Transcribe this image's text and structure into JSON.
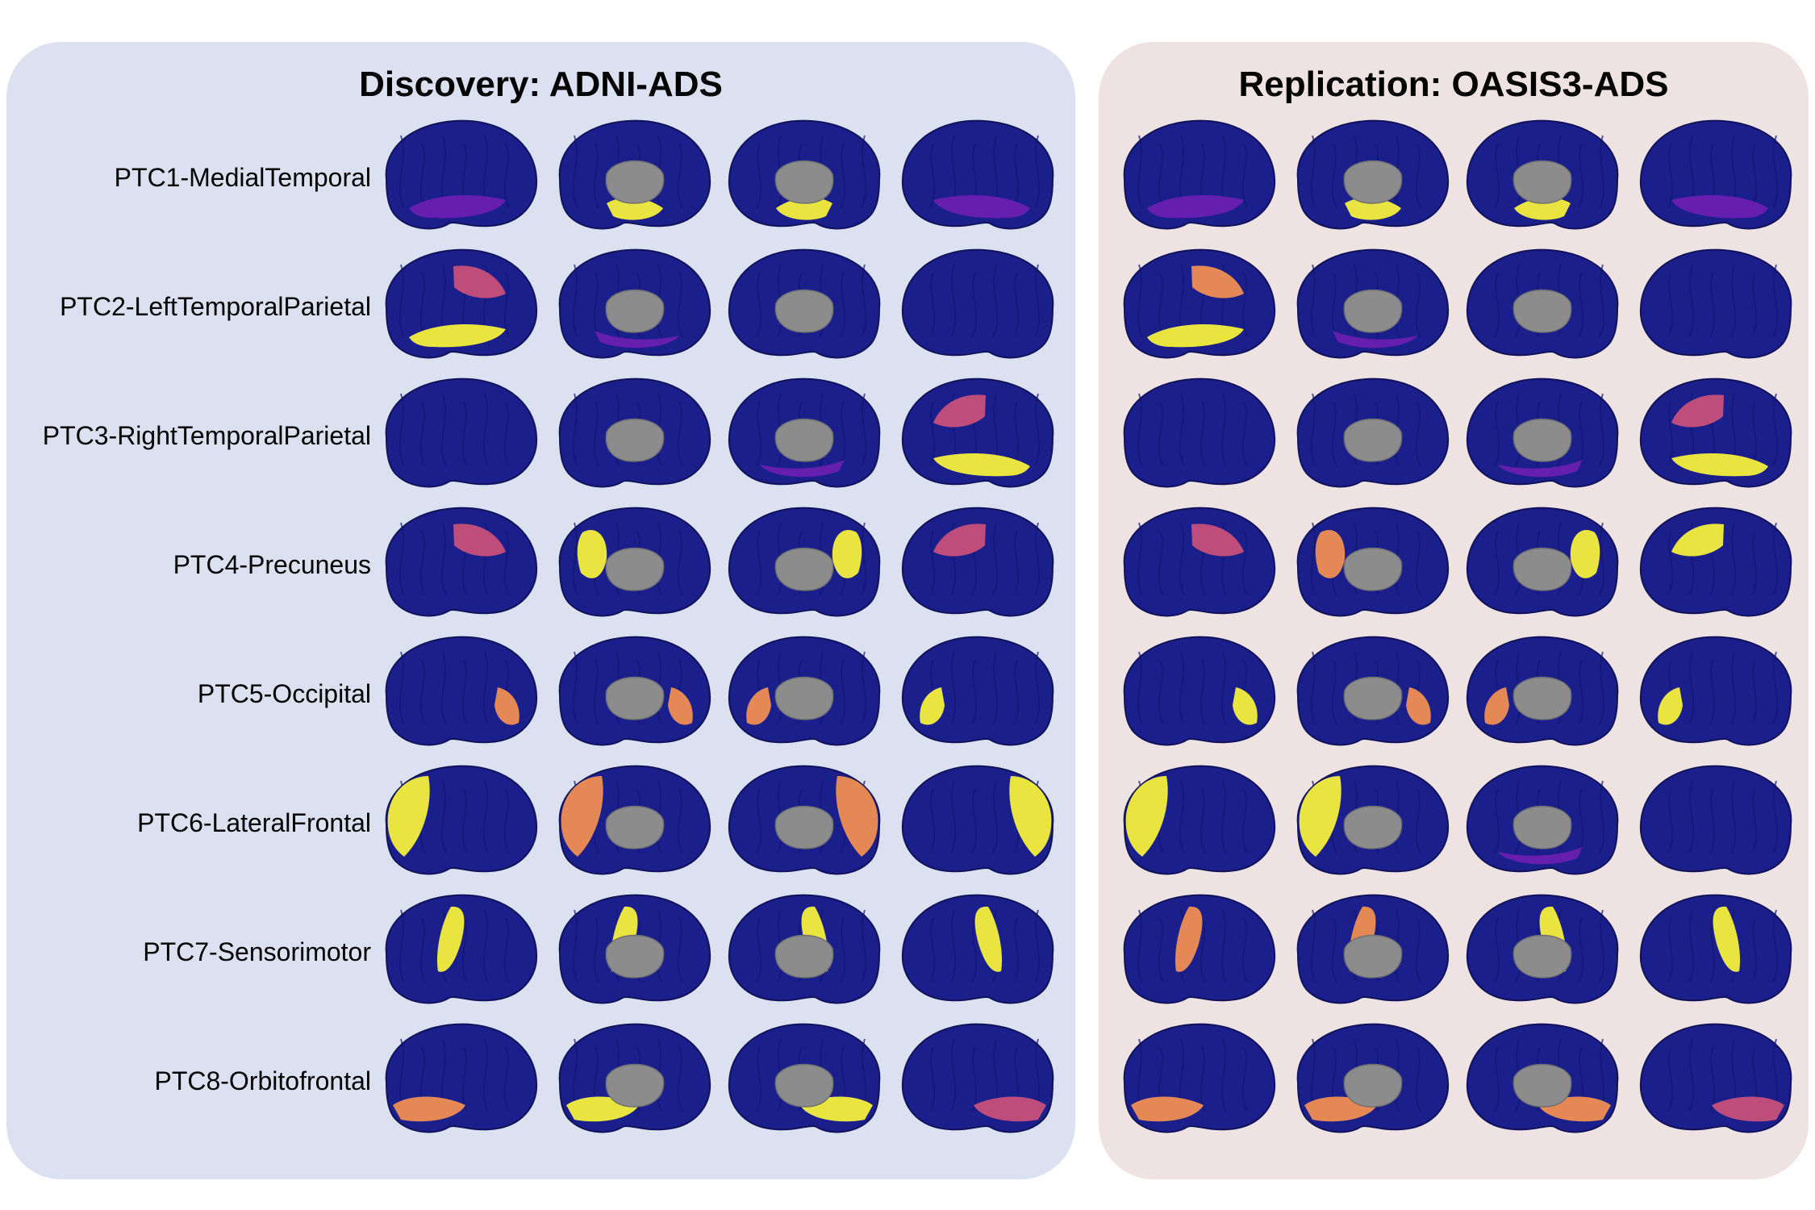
{
  "panels": {
    "discovery": {
      "title": "Discovery: ADNI-ADS"
    },
    "replication": {
      "title": "Replication: OASIS3-ADS"
    }
  },
  "rows": [
    {
      "label": "PTC1-MedialTemporal"
    },
    {
      "label": "PTC2-LeftTemporalParietal"
    },
    {
      "label": "PTC3-RightTemporalParietal"
    },
    {
      "label": "PTC4-Precuneus"
    },
    {
      "label": "PTC5-Occipital"
    },
    {
      "label": "PTC6-LateralFrontal"
    },
    {
      "label": "PTC7-Sensorimotor"
    },
    {
      "label": "PTC8-Orbitofrontal"
    }
  ],
  "views": [
    "left-lateral",
    "left-medial",
    "right-medial",
    "right-lateral"
  ],
  "colors": {
    "base": "#1b1f8c",
    "low": "#6a1fb0",
    "mid": "#c8507a",
    "high": "#ef8e52",
    "peak": "#f6ef3c",
    "core": "#8c8c8c"
  },
  "highlights": {
    "discovery": [
      [
        [
          "temporal-low"
        ],
        [
          "hippo-peak"
        ],
        [
          "hippo-peak"
        ],
        [
          "temporal-low"
        ]
      ],
      [
        [
          "temporal-peak",
          "parietal-mid"
        ],
        [
          "medial-low"
        ],
        [],
        []
      ],
      [
        [],
        [],
        [
          "medial-low"
        ],
        [
          "temporal-peak",
          "parietal-mid"
        ]
      ],
      [
        [
          "parietal-mid"
        ],
        [
          "precuneus-peak"
        ],
        [
          "precuneus-peak"
        ],
        [
          "parietal-mid"
        ]
      ],
      [
        [
          "occipital-high"
        ],
        [
          "occipital-high"
        ],
        [
          "occipital-high"
        ],
        [
          "occipital-peak"
        ]
      ],
      [
        [
          "frontal-peak"
        ],
        [
          "frontal-high"
        ],
        [
          "frontal-high"
        ],
        [
          "frontal-peak"
        ]
      ],
      [
        [
          "motor-peak"
        ],
        [
          "motor-peak"
        ],
        [
          "motor-peak"
        ],
        [
          "motor-peak"
        ]
      ],
      [
        [
          "orbito-high"
        ],
        [
          "orbito-peak"
        ],
        [
          "orbito-peak"
        ],
        [
          "orbito-mid"
        ]
      ]
    ],
    "replication": [
      [
        [
          "temporal-low"
        ],
        [
          "hippo-peak"
        ],
        [
          "hippo-peak"
        ],
        [
          "temporal-low"
        ]
      ],
      [
        [
          "temporal-peak",
          "parietal-high"
        ],
        [
          "medial-low"
        ],
        [],
        []
      ],
      [
        [],
        [],
        [
          "medial-low"
        ],
        [
          "temporal-peak",
          "parietal-mid"
        ]
      ],
      [
        [
          "parietal-mid"
        ],
        [
          "precuneus-high"
        ],
        [
          "precuneus-peak"
        ],
        [
          "parietal-peak"
        ]
      ],
      [
        [
          "occipital-peak"
        ],
        [
          "occipital-high"
        ],
        [
          "occipital-high"
        ],
        [
          "occipital-peak"
        ]
      ],
      [
        [
          "frontal-peak"
        ],
        [
          "frontal-peak"
        ],
        [
          "medial-low"
        ],
        []
      ],
      [
        [
          "motor-high"
        ],
        [
          "motor-high"
        ],
        [
          "motor-peak"
        ],
        [
          "motor-peak"
        ]
      ],
      [
        [
          "orbito-high"
        ],
        [
          "orbito-high"
        ],
        [
          "orbito-high"
        ],
        [
          "orbito-mid"
        ]
      ]
    ]
  }
}
